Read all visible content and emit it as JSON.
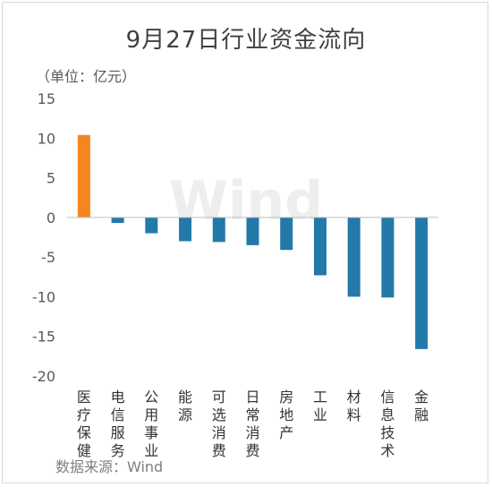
{
  "chart_data": {
    "type": "bar",
    "title": "9月27日行业资金流向",
    "unit_label": "（单位：亿元）",
    "source_label": "数据来源：Wind",
    "watermark": "Wind",
    "categories": [
      "医疗保健",
      "电信服务",
      "公用事业",
      "能源",
      "可选消费",
      "日常消费",
      "房地产",
      "工业",
      "材料",
      "信息技术",
      "金融"
    ],
    "values": [
      10.4,
      -0.7,
      -2.0,
      -3.0,
      -3.1,
      -3.5,
      -4.1,
      -7.3,
      -10.0,
      -10.1,
      -16.6
    ],
    "ylim": [
      -20,
      15
    ],
    "yticks": [
      15,
      10,
      5,
      0,
      -5,
      -10,
      -15,
      -20
    ],
    "colors": {
      "positive": "#f5861f",
      "negative": "#2379a8"
    },
    "grid": false
  }
}
